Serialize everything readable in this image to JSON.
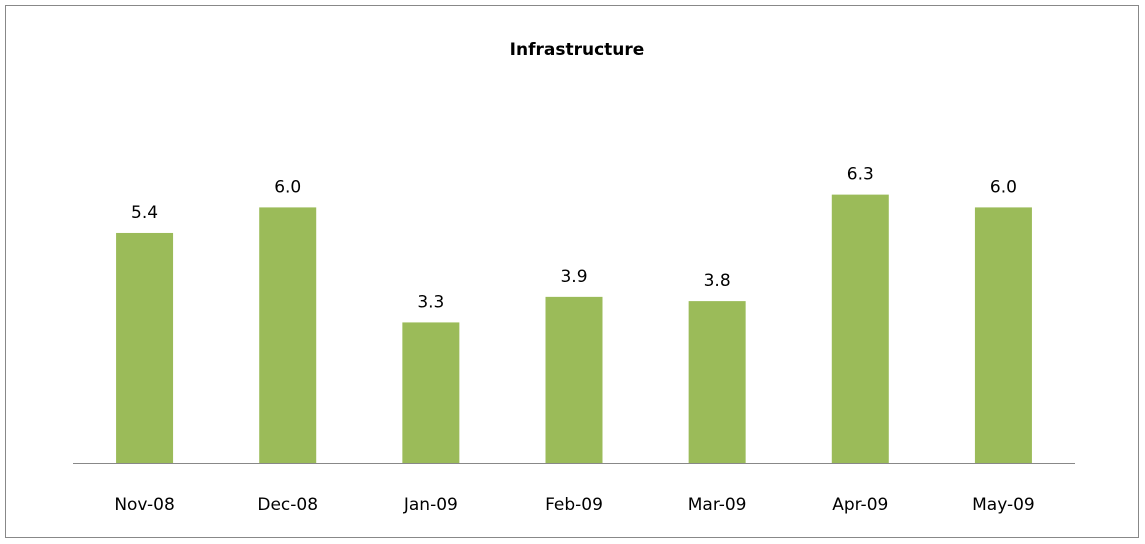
{
  "chart_data": {
    "type": "bar",
    "title": "Infrastructure",
    "categories": [
      "Nov-08",
      "Dec-08",
      "Jan-09",
      "Feb-09",
      "Mar-09",
      "Apr-09",
      "May-09"
    ],
    "values": [
      5.4,
      6.0,
      3.3,
      3.9,
      3.8,
      6.3,
      6.0
    ],
    "value_labels": [
      "5.4",
      "6.0",
      "3.3",
      "3.9",
      "3.8",
      "6.3",
      "6.0"
    ],
    "color": "#9bbb59"
  }
}
